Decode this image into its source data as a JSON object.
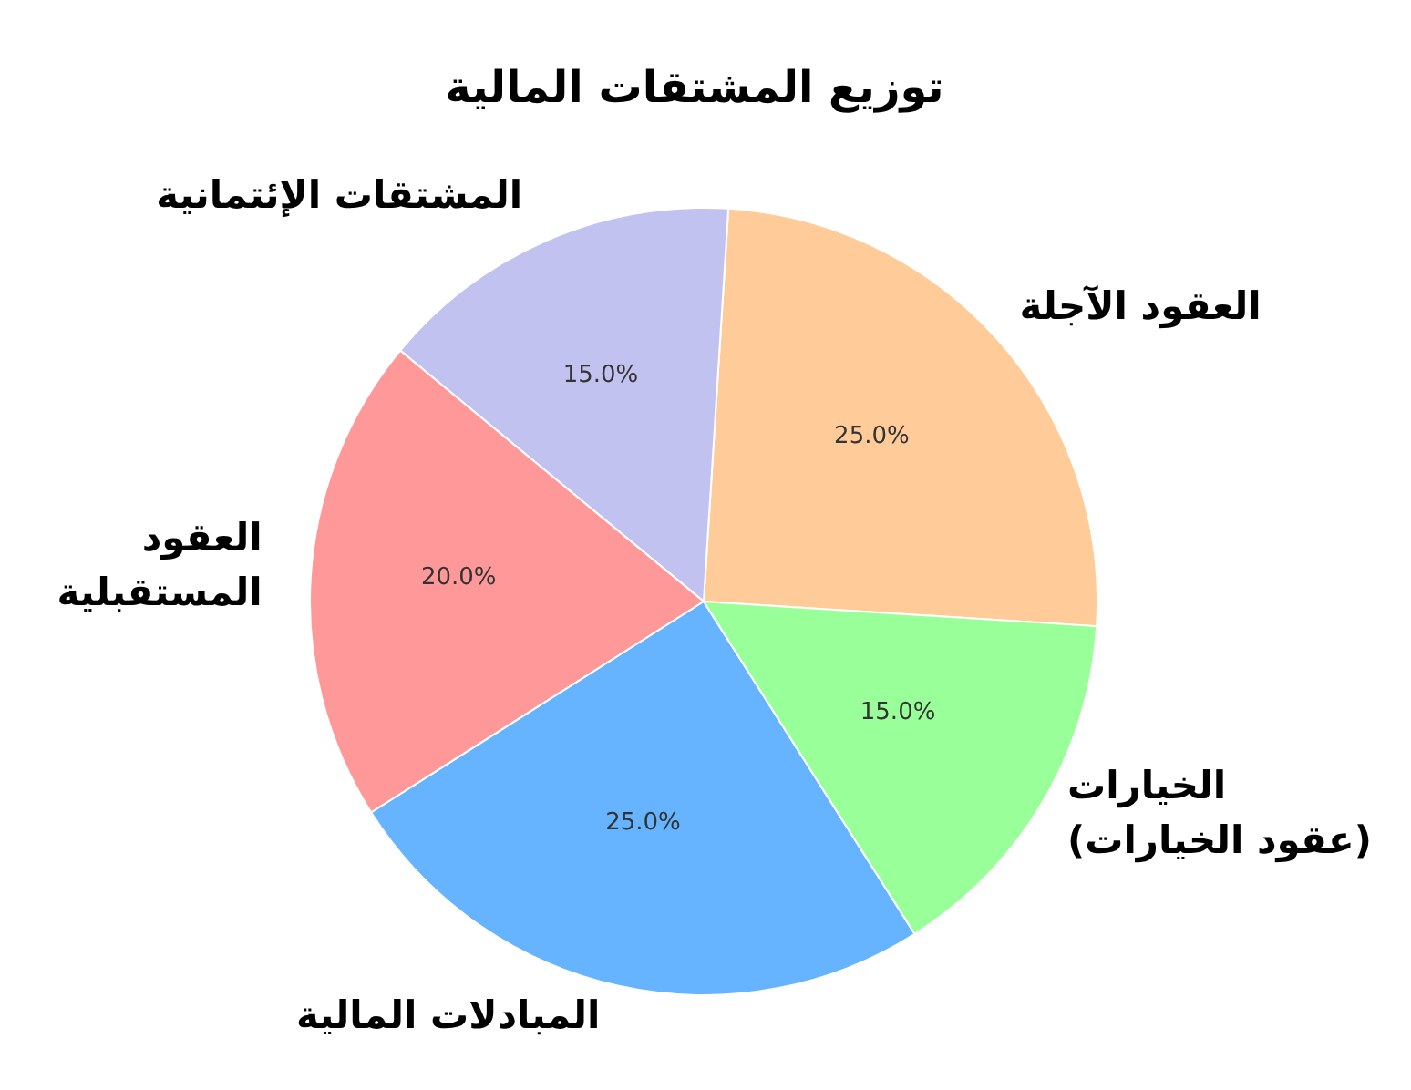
{
  "chart_data": {
    "type": "pie",
    "title": "توزيع المشتقات المالية",
    "categories": [
      "العقود الآجلة",
      "المشتقات الإئتمانية",
      "العقود\nالمستقبلية",
      "المبادلات المالية",
      "الخيارات\n(عقود الخيارات)"
    ],
    "values": [
      25,
      15,
      20,
      25,
      15
    ],
    "colors": [
      "#ffcc99",
      "#c2c2f0",
      "#ff9999",
      "#66b3ff",
      "#99ff99"
    ],
    "value_labels": [
      "25.0%",
      "15.0%",
      "20.0%",
      "25.0%",
      "15.0%"
    ]
  }
}
